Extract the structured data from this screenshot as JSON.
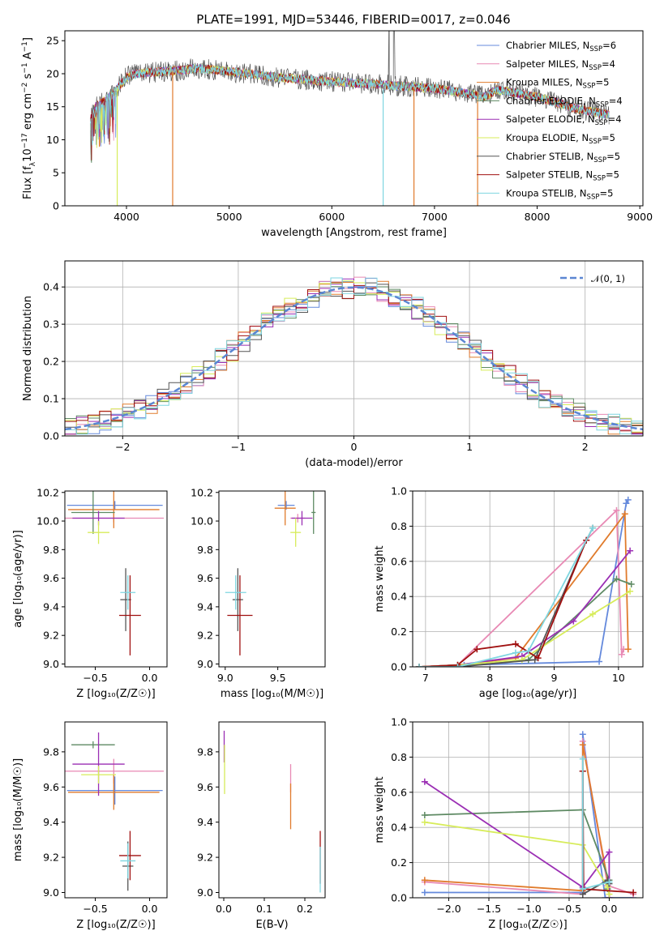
{
  "figure": {
    "title": "PLATE=1991, MJD=53446, FIBERID=0017, z=0.046"
  },
  "colors": {
    "series": [
      "#6489dc",
      "#e889b4",
      "#e07b2c",
      "#5e8a63",
      "#9b2fb4",
      "#d7ec5a",
      "#555555",
      "#a01010",
      "#7ed6e0"
    ],
    "gaussian": "#5b86d2"
  },
  "chart_data": [
    {
      "id": "spectrum",
      "type": "line",
      "title": "PLATE=1991, MJD=53446, FIBERID=0017, z=0.046",
      "xlabel": "wavelength [Angstrom, rest frame]",
      "ylabel": "Flux [f_λ 10^-17 erg cm^-2 s^-1 A^-1]",
      "xlim": [
        3400,
        9030
      ],
      "ylim": [
        0,
        26.5
      ],
      "xticks": [
        4000,
        5000,
        6000,
        7000,
        8000,
        9000
      ],
      "yticks": [
        0,
        5,
        10,
        15,
        20,
        25
      ],
      "grid": false,
      "legend_position": "top-right",
      "continuum": {
        "x": [
          3650,
          3700,
          3800,
          3900,
          4000,
          4100,
          4300,
          4500,
          4700,
          4900,
          5200,
          5500,
          6000,
          6500,
          7000,
          7500,
          7600,
          8000,
          8400,
          8700
        ],
        "y": [
          13.0,
          15.0,
          16.0,
          17.5,
          19.5,
          20.0,
          20.3,
          20.5,
          20.8,
          20.5,
          20.0,
          19.4,
          18.8,
          18.3,
          17.8,
          16.5,
          17.6,
          16.5,
          14.6,
          13.8
        ]
      },
      "series": [
        {
          "name": "Chabrier MILES, N_SSP=6",
          "name_main": "Chabrier MILES, N",
          "name_sub": "SSP",
          "name_tail": "=6"
        },
        {
          "name": "Salpeter MILES, N_SSP=4",
          "name_main": "Salpeter MILES, N",
          "name_sub": "SSP",
          "name_tail": "=4"
        },
        {
          "name": "Kroupa MILES, N_SSP=5",
          "name_main": "Kroupa MILES, N",
          "name_sub": "SSP",
          "name_tail": "=5"
        },
        {
          "name": "Chabrier ELODIE, N_SSP=4",
          "name_main": "Chabrier ELODIE, N",
          "name_sub": "SSP",
          "name_tail": "=4"
        },
        {
          "name": "Salpeter ELODIE, N_SSP=4",
          "name_main": "Salpeter ELODIE, N",
          "name_sub": "SSP",
          "name_tail": "=4"
        },
        {
          "name": "Kroupa ELODIE, N_SSP=5",
          "name_main": "Kroupa ELODIE, N",
          "name_sub": "SSP",
          "name_tail": "=5"
        },
        {
          "name": "Chabrier STELIB, N_SSP=5",
          "name_main": "Chabrier STELIB, N",
          "name_sub": "SSP",
          "name_tail": "=5"
        },
        {
          "name": "Salpeter STELIB, N_SSP=5",
          "name_main": "Salpeter STELIB, N",
          "name_sub": "SSP",
          "name_tail": "=5"
        },
        {
          "name": "Kroupa STELIB, N_SSP=5",
          "name_main": "Kroupa STELIB, N",
          "name_sub": "SSP",
          "name_tail": "=5"
        }
      ],
      "drops": [
        {
          "x": 3910,
          "to": 0,
          "series": 5
        },
        {
          "x": 4450,
          "to": 0,
          "series": 2
        },
        {
          "x": 6500,
          "to": 0,
          "series": 8
        },
        {
          "x": 6800,
          "to": 0,
          "series": 2
        },
        {
          "x": 7420,
          "to": 0,
          "series": 2
        }
      ]
    },
    {
      "id": "residuals",
      "type": "line",
      "xlabel": "(data-model)/error",
      "ylabel": "Normed distribution",
      "xlim": [
        -2.5,
        2.5
      ],
      "ylim": [
        0,
        0.47
      ],
      "xticks": [
        -2,
        -1,
        0,
        1,
        2
      ],
      "yticks": [
        0.0,
        0.1,
        0.2,
        0.3,
        0.4
      ],
      "grid": true,
      "legend_position": "top-right",
      "legend_label": "𝒩(0, 1)",
      "bin_width": 0.1
    },
    {
      "id": "age_vs_Z",
      "type": "scatter",
      "xlabel": "Z [log₁₀(Z/Z☉)]",
      "ylabel": "age  [log₁₀(age/yr)]",
      "xlim": [
        -0.78,
        0.16
      ],
      "ylim": [
        8.98,
        10.21
      ],
      "xticks": [
        -0.5,
        0.0
      ],
      "yticks": [
        9.0,
        9.2,
        9.4,
        9.6,
        9.8,
        10.0,
        10.2
      ],
      "grid": false,
      "points": [
        {
          "series": 0,
          "x": -0.32,
          "y": 10.11,
          "xerr": 0.44,
          "yerr": 0.03
        },
        {
          "series": 1,
          "x": -0.33,
          "y": 10.02,
          "xerr": 0.46,
          "yerr": 0.03
        },
        {
          "series": 2,
          "x": -0.33,
          "y": 10.08,
          "xerr": 0.42,
          "yerr": 0.13
        },
        {
          "series": 3,
          "x": -0.52,
          "y": 10.06,
          "xerr": 0.2,
          "yerr": 0.15
        },
        {
          "series": 4,
          "x": -0.47,
          "y": 10.02,
          "xerr": 0.24,
          "yerr": 0.05
        },
        {
          "series": 5,
          "x": -0.47,
          "y": 9.92,
          "xerr": 0.1,
          "yerr": 0.08
        },
        {
          "series": 6,
          "x": -0.22,
          "y": 9.45,
          "xerr": 0.05,
          "yerr": 0.22
        },
        {
          "series": 7,
          "x": -0.18,
          "y": 9.34,
          "xerr": 0.1,
          "yerr": 0.28
        },
        {
          "series": 8,
          "x": -0.2,
          "y": 9.5,
          "xerr": 0.07,
          "yerr": 0.12
        }
      ]
    },
    {
      "id": "age_vs_mass",
      "type": "scatter",
      "xlabel": "mass [log₁₀(M/M☉)]",
      "ylabel": "",
      "xlim": [
        8.94,
        9.95
      ],
      "ylim": [
        8.98,
        10.21
      ],
      "xticks": [
        9.0,
        9.5
      ],
      "yticks": [
        9.0,
        9.2,
        9.4,
        9.6,
        9.8,
        10.0,
        10.2
      ],
      "grid": false,
      "points": [
        {
          "series": 0,
          "x": 9.58,
          "y": 10.11,
          "xerr": 0.08,
          "yerr": 0.03
        },
        {
          "series": 1,
          "x": 9.69,
          "y": 10.02,
          "xerr": 0.07,
          "yerr": 0.03
        },
        {
          "series": 2,
          "x": 9.57,
          "y": 10.09,
          "xerr": 0.1,
          "yerr": 0.12
        },
        {
          "series": 3,
          "x": 9.84,
          "y": 10.06,
          "xerr": 0.02,
          "yerr": 0.15
        },
        {
          "series": 4,
          "x": 9.73,
          "y": 10.02,
          "xerr": 0.1,
          "yerr": 0.05
        },
        {
          "series": 5,
          "x": 9.67,
          "y": 9.92,
          "xerr": 0.05,
          "yerr": 0.1
        },
        {
          "series": 6,
          "x": 9.12,
          "y": 9.45,
          "xerr": 0.05,
          "yerr": 0.22
        },
        {
          "series": 7,
          "x": 9.14,
          "y": 9.34,
          "xerr": 0.12,
          "yerr": 0.28
        },
        {
          "series": 8,
          "x": 9.1,
          "y": 9.5,
          "xerr": 0.1,
          "yerr": 0.12
        }
      ]
    },
    {
      "id": "massweight_vs_age",
      "type": "line",
      "xlabel": "age  [log₁₀(age/yr)]",
      "ylabel": "mass weight",
      "xlim": [
        6.8,
        10.38
      ],
      "ylim": [
        0,
        1.0
      ],
      "xticks": [
        7,
        8,
        9,
        10
      ],
      "yticks": [
        0.0,
        0.2,
        0.4,
        0.6,
        0.8,
        1.0
      ],
      "grid": true,
      "series": [
        {
          "series": 0,
          "x": [
            6.9,
            7.6,
            9.7,
            10.12,
            10.15
          ],
          "y": [
            0.0,
            0.01,
            0.03,
            0.93,
            0.95
          ]
        },
        {
          "series": 1,
          "x": [
            6.9,
            7.5,
            9.97,
            10.05,
            10.08
          ],
          "y": [
            0.0,
            0.01,
            0.89,
            0.07,
            0.1
          ]
        },
        {
          "series": 2,
          "x": [
            6.9,
            7.5,
            8.4,
            10.1,
            10.15
          ],
          "y": [
            0.0,
            0.01,
            0.05,
            0.87,
            0.1
          ]
        },
        {
          "series": 3,
          "x": [
            6.9,
            7.5,
            8.6,
            9.97,
            10.2
          ],
          "y": [
            0.0,
            0.01,
            0.04,
            0.5,
            0.47
          ]
        },
        {
          "series": 4,
          "x": [
            6.9,
            7.5,
            8.5,
            9.3,
            10.18
          ],
          "y": [
            0.0,
            0.01,
            0.06,
            0.26,
            0.66
          ]
        },
        {
          "series": 5,
          "x": [
            6.9,
            7.5,
            8.5,
            9.6,
            10.18
          ],
          "y": [
            0.0,
            0.01,
            0.04,
            0.3,
            0.43
          ]
        },
        {
          "series": 6,
          "x": [
            6.9,
            7.5,
            8.7,
            9.5,
            9.6
          ],
          "y": [
            0.0,
            0.0,
            0.04,
            0.72,
            0.79
          ]
        },
        {
          "series": 7,
          "x": [
            6.9,
            7.5,
            7.8,
            8.4,
            8.75,
            9.5
          ],
          "y": [
            0.0,
            0.01,
            0.1,
            0.13,
            0.05,
            0.72
          ]
        },
        {
          "series": 8,
          "x": [
            6.9,
            7.5,
            8.4,
            8.6,
            9.6
          ],
          "y": [
            0.0,
            0.0,
            0.08,
            0.09,
            0.79
          ]
        }
      ]
    },
    {
      "id": "mass_vs_Z",
      "type": "scatter",
      "xlabel": "Z [log₁₀(Z/Z☉)]",
      "ylabel": "mass [log₁₀(M/M☉)]",
      "xlim": [
        -0.78,
        0.16
      ],
      "ylim": [
        8.97,
        9.97
      ],
      "xticks": [
        -0.5,
        0.0
      ],
      "yticks": [
        9.0,
        9.2,
        9.4,
        9.6,
        9.8
      ],
      "grid": false,
      "points": [
        {
          "series": 0,
          "x": -0.32,
          "y": 9.58,
          "xerr": 0.44,
          "yerr": 0.08
        },
        {
          "series": 1,
          "x": -0.33,
          "y": 9.69,
          "xerr": 0.46,
          "yerr": 0.07
        },
        {
          "series": 2,
          "x": -0.33,
          "y": 9.57,
          "xerr": 0.42,
          "yerr": 0.1
        },
        {
          "series": 3,
          "x": -0.52,
          "y": 9.84,
          "xerr": 0.2,
          "yerr": 0.02
        },
        {
          "series": 4,
          "x": -0.47,
          "y": 9.73,
          "xerr": 0.24,
          "yerr": 0.18
        },
        {
          "series": 5,
          "x": -0.47,
          "y": 9.67,
          "xerr": 0.16,
          "yerr": 0.05
        },
        {
          "series": 6,
          "x": -0.2,
          "y": 9.15,
          "xerr": 0.05,
          "yerr": 0.14
        },
        {
          "series": 7,
          "x": -0.18,
          "y": 9.21,
          "xerr": 0.1,
          "yerr": 0.14
        },
        {
          "series": 8,
          "x": -0.2,
          "y": 9.18,
          "xerr": 0.07,
          "yerr": 0.1
        }
      ]
    },
    {
      "id": "mass_vs_ebv",
      "type": "scatter",
      "xlabel": "E(B-V)",
      "ylabel": "",
      "xlim": [
        -0.012,
        0.25
      ],
      "ylim": [
        8.97,
        9.97
      ],
      "xticks": [
        0.0,
        0.1,
        0.2
      ],
      "yticks": [
        9.0,
        9.2,
        9.4,
        9.6,
        9.8
      ],
      "grid": false,
      "points": [
        {
          "series": 4,
          "x": 0.001,
          "y": 9.83,
          "xerr": 0.0,
          "yerr": 0.09
        },
        {
          "series": 5,
          "x": 0.002,
          "y": 9.7,
          "xerr": 0.0,
          "yerr": 0.14
        },
        {
          "series": 1,
          "x": 0.165,
          "y": 9.65,
          "xerr": 0.0,
          "yerr": 0.08
        },
        {
          "series": 2,
          "x": 0.165,
          "y": 9.49,
          "xerr": 0.0,
          "yerr": 0.13
        },
        {
          "series": 7,
          "x": 0.238,
          "y": 9.2,
          "xerr": 0.0,
          "yerr": 0.15
        },
        {
          "series": 8,
          "x": 0.238,
          "y": 9.13,
          "xerr": 0.0,
          "yerr": 0.13
        }
      ]
    },
    {
      "id": "massweight_vs_Z",
      "type": "line",
      "xlabel": "Z [log₁₀(Z/Z☉)]",
      "ylabel": "mass weight",
      "xlim": [
        -2.45,
        0.42
      ],
      "ylim": [
        0,
        1.0
      ],
      "xticks": [
        -2.0,
        -1.5,
        -1.0,
        -0.5,
        0.0
      ],
      "yticks": [
        0.0,
        0.2,
        0.4,
        0.6,
        0.8,
        1.0
      ],
      "grid": true,
      "series": [
        {
          "series": 0,
          "x": [
            -2.3,
            -0.33,
            -0.33,
            -0.05,
            0.3
          ],
          "y": [
            0.03,
            0.03,
            0.93,
            0.0,
            0.0
          ]
        },
        {
          "series": 1,
          "x": [
            -2.3,
            -0.33,
            -0.33,
            -0.02,
            0.3
          ],
          "y": [
            0.09,
            0.02,
            0.89,
            0.07,
            0.02
          ]
        },
        {
          "series": 2,
          "x": [
            -2.3,
            -0.33,
            -0.33,
            -0.02
          ],
          "y": [
            0.1,
            0.04,
            0.87,
            0.1
          ]
        },
        {
          "series": 3,
          "x": [
            -2.3,
            -0.33,
            0.0,
            -0.02
          ],
          "y": [
            0.47,
            0.5,
            0.1,
            0.05
          ]
        },
        {
          "series": 4,
          "x": [
            -2.3,
            -0.33,
            0.0,
            0.0
          ],
          "y": [
            0.66,
            0.06,
            0.26,
            0.0
          ]
        },
        {
          "series": 5,
          "x": [
            -2.3,
            -0.33,
            -0.02,
            0.0
          ],
          "y": [
            0.43,
            0.3,
            0.06,
            0.02
          ]
        },
        {
          "series": 6,
          "x": [
            -0.33,
            -0.33,
            -0.02,
            0.0
          ],
          "y": [
            0.72,
            0.02,
            0.1,
            0.08
          ]
        },
        {
          "series": 7,
          "x": [
            -0.33,
            -0.32,
            0.3
          ],
          "y": [
            0.72,
            0.05,
            0.03
          ]
        },
        {
          "series": 8,
          "x": [
            -0.33,
            -0.33,
            0.0
          ],
          "y": [
            0.79,
            0.05,
            0.09
          ]
        }
      ]
    }
  ]
}
